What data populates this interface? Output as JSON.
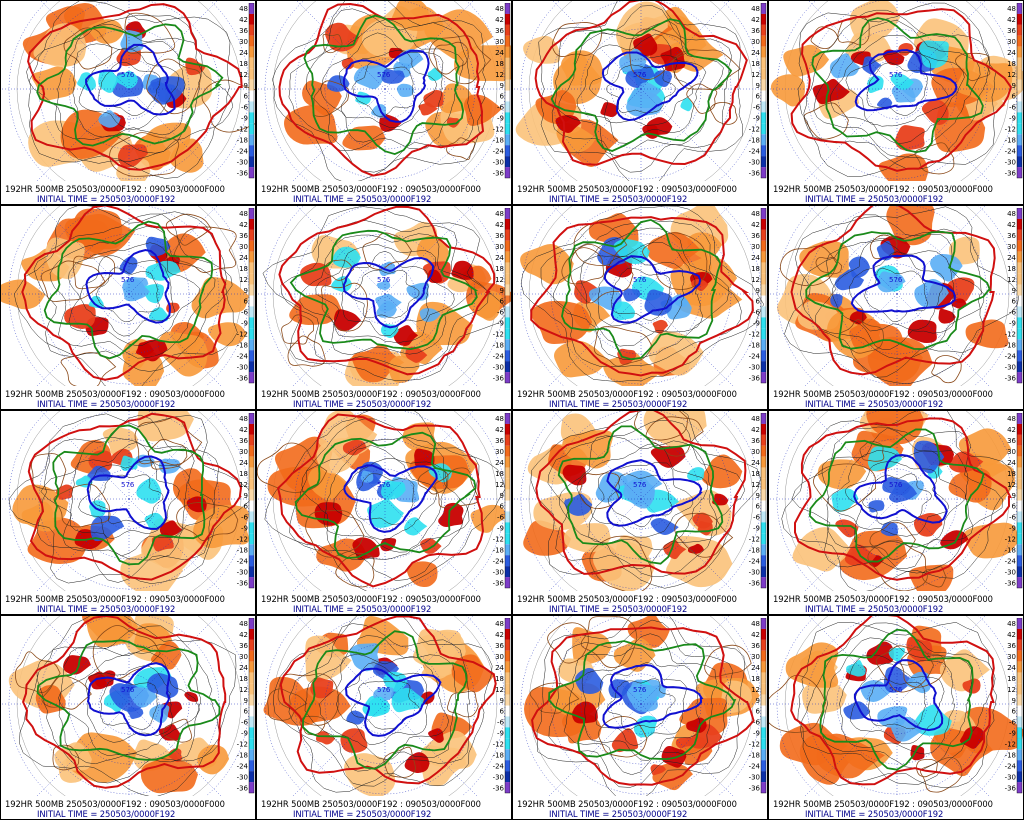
{
  "panels": [
    {
      "caption1": "192HR 500MB 250503/0000F192 : 090503/0000F000",
      "caption2": "INITIAL TIME = 250503/0000F192",
      "label": "576"
    },
    {
      "caption1": "192HR 500MB 250503/0000F192 : 090503/0000F000",
      "caption2": "INITIAL TIME = 250503/0000F192",
      "label": "576"
    },
    {
      "caption1": "192HR 500MB 250503/0000F192 : 090503/0000F000",
      "caption2": "INITIAL TIME = 250503/0000F192",
      "label": "576"
    },
    {
      "caption1": "192HR 500MB 250503/0000F192 : 090503/0000F000",
      "caption2": "INITIAL TIME = 250503/0000F192",
      "label": "576"
    },
    {
      "caption1": "192HR 500MB 250503/0000F192 : 090503/0000F000",
      "caption2": "INITIAL TIME = 250503/0000F192",
      "label": "576"
    },
    {
      "caption1": "192HR 500MB 250503/0000F192 : 090503/0000F000",
      "caption2": "INITIAL TIME = 250503/0000F192",
      "label": "576"
    },
    {
      "caption1": "192HR 500MB 250503/0000F192 : 090503/0000F000",
      "caption2": "INITIAL TIME = 250503/0000F192",
      "label": "576"
    },
    {
      "caption1": "192HR 500MB 250503/0000F192 : 090503/0000F000",
      "caption2": "INITIAL TIME = 250503/0000F192",
      "label": "576"
    },
    {
      "caption1": "192HR 500MB 250503/0000F192 : 090503/0000F000",
      "caption2": "INITIAL TIME = 250503/0000F192",
      "label": "576"
    },
    {
      "caption1": "192HR 500MB 250503/0000F192 : 090503/0000F000",
      "caption2": "INITIAL TIME = 250503/0000F192",
      "label": "576"
    },
    {
      "caption1": "192HR 500MB 250503/0000F192 : 090503/0000F000",
      "caption2": "INITIAL TIME = 250503/0000F192",
      "label": "576"
    },
    {
      "caption1": "192HR 500MB 250503/0000F192 : 090503/0000F000",
      "caption2": "INITIAL TIME = 250503/0000F192",
      "label": "576"
    },
    {
      "caption1": "192HR 500MB 250503/0000F192 : 090503/0000F000",
      "caption2": "INITIAL TIME = 250503/0000F192",
      "label": "576"
    },
    {
      "caption1": "192HR 500MB 250503/0000F192 : 090503/0000F000",
      "caption2": "INITIAL TIME = 250503/0000F192",
      "label": "576"
    },
    {
      "caption1": "192HR 500MB 250503/0000F192 : 090503/0000F000",
      "caption2": "INITIAL TIME = 250503/0000F192",
      "label": "576"
    },
    {
      "caption1": "192HR 500MB 250503/0000F192 : 090503/0000F000",
      "caption2": "INITIAL TIME = 250503/0000F192",
      "label": "576"
    }
  ],
  "colorbar_ticks": [
    "48",
    "42",
    "36",
    "30",
    "24",
    "18",
    "12",
    "9",
    "6",
    "-6",
    "-9",
    "-12",
    "-18",
    "-24",
    "-30",
    "-36"
  ],
  "colors": {
    "dark_red": "#c80000",
    "red": "#e8401c",
    "orange_red": "#f26a1b",
    "orange": "#f7993a",
    "light_orange": "#fbc27a",
    "cyan": "#2ee0f0",
    "light_blue": "#5aaef5",
    "blue": "#2a5ce0",
    "dark_blue": "#0c2fa8",
    "purple": "#7d3cc8",
    "contour_red": "#d01010",
    "contour_green": "#1a8a1a",
    "contour_blue": "#1010d0",
    "coast": "#8b4a1a",
    "grid_line": "#2030c0"
  }
}
